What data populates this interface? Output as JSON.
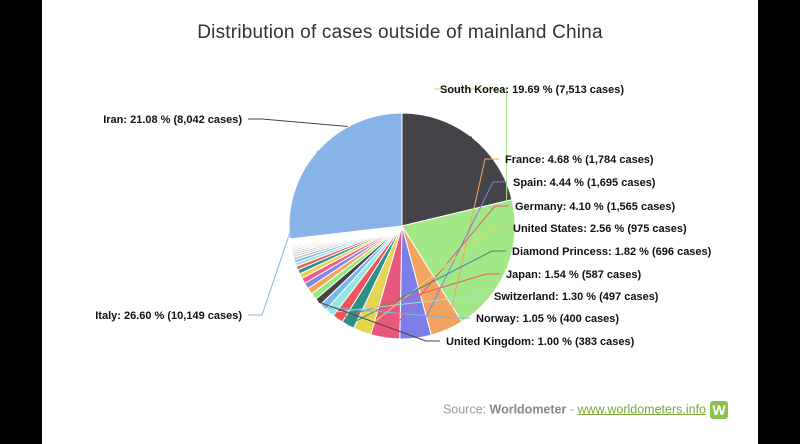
{
  "chart_data": {
    "type": "pie",
    "title": "Distribution of cases outside of mainland China",
    "slices": [
      {
        "name": "Iran",
        "percent": 21.08,
        "cases": 8042,
        "label": "Iran: 21.08 % (8,042 cases)",
        "color": "#434348"
      },
      {
        "name": "South Korea",
        "percent": 19.69,
        "cases": 7513,
        "label": "South Korea: 19.69 % (7,513 cases)",
        "color": "#a3e887"
      },
      {
        "name": "France",
        "percent": 4.68,
        "cases": 1784,
        "label": "France: 4.68 % (1,784 cases)",
        "color": "#f0a45f"
      },
      {
        "name": "Spain",
        "percent": 4.44,
        "cases": 1695,
        "label": "Spain: 4.44 % (1,695 cases)",
        "color": "#7c7ee8"
      },
      {
        "name": "Germany",
        "percent": 4.1,
        "cases": 1565,
        "label": "Germany: 4.10 % (1,565 cases)",
        "color": "#e8587a"
      },
      {
        "name": "United States",
        "percent": 2.56,
        "cases": 975,
        "label": "United States: 2.56 % (975 cases)",
        "color": "#e5d552"
      },
      {
        "name": "Diamond Princess",
        "percent": 1.82,
        "cases": 696,
        "label": "Diamond Princess: 1.82 % (696 cases)",
        "color": "#2d8f8a"
      },
      {
        "name": "Japan",
        "percent": 1.54,
        "cases": 587,
        "label": "Japan: 1.54 % (587 cases)",
        "color": "#f0555a"
      },
      {
        "name": "Switzerland",
        "percent": 1.3,
        "cases": 497,
        "label": "Switzerland: 1.30 % (497 cases)",
        "color": "#91e8e1"
      },
      {
        "name": "Norway",
        "percent": 1.05,
        "cases": 400,
        "label": "Norway: 1.05 % (400 cases)",
        "color": "#7cb5ec"
      },
      {
        "name": "United Kingdom",
        "percent": 1.0,
        "cases": 383,
        "label": "United Kingdom: 1.00 % (383 cases)",
        "color": "#434348"
      },
      {
        "name": "",
        "percent": 0.95,
        "label": "",
        "color": "#90ed7d"
      },
      {
        "name": "",
        "percent": 0.9,
        "label": "",
        "color": "#f7a35c"
      },
      {
        "name": "",
        "percent": 0.85,
        "label": "",
        "color": "#8085e9"
      },
      {
        "name": "",
        "percent": 0.8,
        "label": "",
        "color": "#f15c80"
      },
      {
        "name": "",
        "percent": 0.7,
        "label": "",
        "color": "#e4d354"
      },
      {
        "name": "",
        "percent": 0.62,
        "label": "",
        "color": "#2b908f"
      },
      {
        "name": "",
        "percent": 0.55,
        "label": "",
        "color": "#f45b5b"
      },
      {
        "name": "",
        "percent": 0.48,
        "label": "",
        "color": "#91e8e1"
      },
      {
        "name": "",
        "percent": 0.42,
        "label": "",
        "color": "#7cb5ec"
      },
      {
        "name": "",
        "percent": 0.38,
        "label": "",
        "color": "#c0c0c0"
      },
      {
        "name": "",
        "percent": 0.34,
        "label": "",
        "color": "#d0d0d0"
      },
      {
        "name": "",
        "percent": 0.3,
        "label": "",
        "color": "#c8c8c8"
      },
      {
        "name": "",
        "percent": 0.27,
        "label": "",
        "color": "#d8d8d8"
      },
      {
        "name": "",
        "percent": 0.24,
        "label": "",
        "color": "#cccccc"
      },
      {
        "name": "",
        "percent": 0.21,
        "label": "",
        "color": "#dddddd"
      },
      {
        "name": "",
        "percent": 0.19,
        "label": "",
        "color": "#c4c4c4"
      },
      {
        "name": "",
        "percent": 0.17,
        "label": "",
        "color": "#d4d4d4"
      },
      {
        "name": "",
        "percent": 0.15,
        "label": "",
        "color": "#cfcfcf"
      },
      {
        "name": "",
        "percent": 0.14,
        "label": "",
        "color": "#e0e0e0"
      },
      {
        "name": "",
        "percent": 0.13,
        "label": "",
        "color": "#c6c6c6"
      },
      {
        "name": "",
        "percent": 0.12,
        "label": "",
        "color": "#dadada"
      },
      {
        "name": "",
        "percent": 0.11,
        "label": "",
        "color": "#cacaca"
      },
      {
        "name": "",
        "percent": 0.1,
        "label": "",
        "color": "#e2e2e2"
      },
      {
        "name": "",
        "percent": 0.09,
        "label": "",
        "color": "#d2d2d2"
      },
      {
        "name": "",
        "percent": 0.08,
        "label": "",
        "color": "#c2c2c2"
      },
      {
        "name": "Italy",
        "percent": 26.6,
        "cases": 10149,
        "label": "Italy: 26.60 % (10,149 cases)",
        "color": "#89b4e8"
      }
    ]
  },
  "source": {
    "prefix": "Source: ",
    "brand": "Worldometer",
    "separator": " - ",
    "url_text": "www.worldometers.info",
    "logo_letter": "W"
  }
}
